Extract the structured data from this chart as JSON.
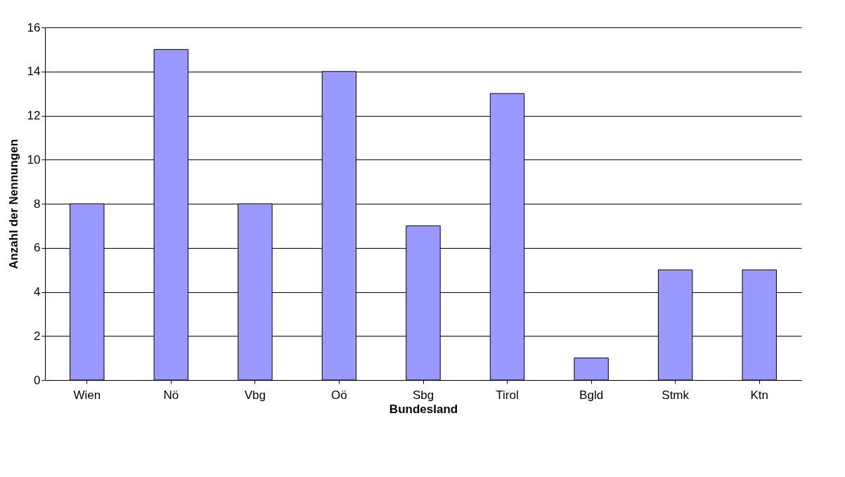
{
  "chart_data": {
    "type": "bar",
    "xlabel": "Bundesland",
    "ylabel": "Anzahl der Nennungen",
    "categories": [
      "Wien",
      "Nö",
      "Vbg",
      "Oö",
      "Sbg",
      "Tirol",
      "Bgld",
      "Stmk",
      "Ktn"
    ],
    "values": [
      8,
      15,
      8,
      14,
      7,
      13,
      1,
      5,
      5
    ],
    "color": "#9999ff",
    "ylim": [
      0,
      16
    ],
    "yticks": [
      0,
      2,
      4,
      6,
      8,
      10,
      12,
      14,
      16
    ],
    "grid": "y"
  }
}
